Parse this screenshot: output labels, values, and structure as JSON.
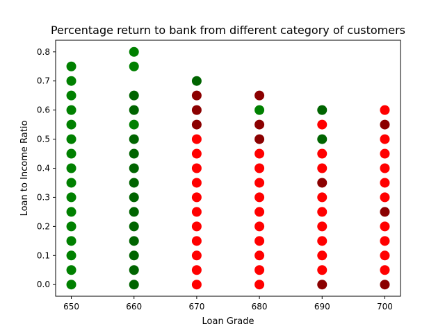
{
  "chart_data": {
    "type": "scatter",
    "title": "Percentage return to bank from different category of customers",
    "xlabel": "Loan Grade",
    "ylabel": "Loan to Income Ratio",
    "xlim": [
      647.5,
      702.5
    ],
    "ylim": [
      -0.04,
      0.84
    ],
    "xticks": [
      650,
      660,
      670,
      680,
      690,
      700
    ],
    "yticks": [
      0.0,
      0.1,
      0.2,
      0.3,
      0.4,
      0.5,
      0.6,
      0.7,
      0.8
    ],
    "grid": false,
    "colors": {
      "green": "#008000",
      "darkgreen": "#006400",
      "red": "#ff0000",
      "darkred": "#8b0000"
    },
    "columns": [
      {
        "x": 650,
        "points": [
          {
            "y": 0.0,
            "c": "green"
          },
          {
            "y": 0.05,
            "c": "green"
          },
          {
            "y": 0.1,
            "c": "green"
          },
          {
            "y": 0.15,
            "c": "green"
          },
          {
            "y": 0.2,
            "c": "green"
          },
          {
            "y": 0.25,
            "c": "green"
          },
          {
            "y": 0.3,
            "c": "green"
          },
          {
            "y": 0.35,
            "c": "green"
          },
          {
            "y": 0.4,
            "c": "green"
          },
          {
            "y": 0.45,
            "c": "green"
          },
          {
            "y": 0.5,
            "c": "green"
          },
          {
            "y": 0.55,
            "c": "green"
          },
          {
            "y": 0.6,
            "c": "green"
          },
          {
            "y": 0.65,
            "c": "green"
          },
          {
            "y": 0.7,
            "c": "green"
          },
          {
            "y": 0.75,
            "c": "green"
          }
        ]
      },
      {
        "x": 660,
        "points": [
          {
            "y": 0.0,
            "c": "darkgreen"
          },
          {
            "y": 0.05,
            "c": "darkgreen"
          },
          {
            "y": 0.1,
            "c": "darkgreen"
          },
          {
            "y": 0.15,
            "c": "darkgreen"
          },
          {
            "y": 0.2,
            "c": "darkgreen"
          },
          {
            "y": 0.25,
            "c": "darkgreen"
          },
          {
            "y": 0.3,
            "c": "darkgreen"
          },
          {
            "y": 0.35,
            "c": "darkgreen"
          },
          {
            "y": 0.4,
            "c": "darkgreen"
          },
          {
            "y": 0.45,
            "c": "darkgreen"
          },
          {
            "y": 0.5,
            "c": "darkgreen"
          },
          {
            "y": 0.55,
            "c": "green"
          },
          {
            "y": 0.6,
            "c": "darkgreen"
          },
          {
            "y": 0.65,
            "c": "darkgreen"
          },
          {
            "y": 0.75,
            "c": "green"
          },
          {
            "y": 0.8,
            "c": "green"
          }
        ]
      },
      {
        "x": 670,
        "points": [
          {
            "y": 0.0,
            "c": "red"
          },
          {
            "y": 0.05,
            "c": "red"
          },
          {
            "y": 0.1,
            "c": "red"
          },
          {
            "y": 0.15,
            "c": "red"
          },
          {
            "y": 0.2,
            "c": "red"
          },
          {
            "y": 0.25,
            "c": "red"
          },
          {
            "y": 0.3,
            "c": "red"
          },
          {
            "y": 0.35,
            "c": "red"
          },
          {
            "y": 0.4,
            "c": "red"
          },
          {
            "y": 0.45,
            "c": "red"
          },
          {
            "y": 0.5,
            "c": "red"
          },
          {
            "y": 0.55,
            "c": "darkred"
          },
          {
            "y": 0.6,
            "c": "darkred"
          },
          {
            "y": 0.65,
            "c": "darkred"
          },
          {
            "y": 0.7,
            "c": "darkgreen"
          }
        ]
      },
      {
        "x": 680,
        "points": [
          {
            "y": 0.0,
            "c": "red"
          },
          {
            "y": 0.05,
            "c": "red"
          },
          {
            "y": 0.1,
            "c": "red"
          },
          {
            "y": 0.15,
            "c": "red"
          },
          {
            "y": 0.2,
            "c": "red"
          },
          {
            "y": 0.25,
            "c": "red"
          },
          {
            "y": 0.3,
            "c": "red"
          },
          {
            "y": 0.35,
            "c": "red"
          },
          {
            "y": 0.4,
            "c": "red"
          },
          {
            "y": 0.45,
            "c": "red"
          },
          {
            "y": 0.5,
            "c": "darkred"
          },
          {
            "y": 0.55,
            "c": "darkred"
          },
          {
            "y": 0.6,
            "c": "green"
          },
          {
            "y": 0.65,
            "c": "darkred"
          }
        ]
      },
      {
        "x": 690,
        "points": [
          {
            "y": 0.0,
            "c": "darkred"
          },
          {
            "y": 0.05,
            "c": "red"
          },
          {
            "y": 0.1,
            "c": "red"
          },
          {
            "y": 0.15,
            "c": "red"
          },
          {
            "y": 0.2,
            "c": "red"
          },
          {
            "y": 0.25,
            "c": "red"
          },
          {
            "y": 0.3,
            "c": "red"
          },
          {
            "y": 0.35,
            "c": "darkred"
          },
          {
            "y": 0.4,
            "c": "red"
          },
          {
            "y": 0.45,
            "c": "red"
          },
          {
            "y": 0.5,
            "c": "darkgreen"
          },
          {
            "y": 0.55,
            "c": "red"
          },
          {
            "y": 0.6,
            "c": "darkgreen"
          }
        ]
      },
      {
        "x": 700,
        "points": [
          {
            "y": 0.0,
            "c": "darkred"
          },
          {
            "y": 0.05,
            "c": "red"
          },
          {
            "y": 0.1,
            "c": "red"
          },
          {
            "y": 0.15,
            "c": "red"
          },
          {
            "y": 0.2,
            "c": "red"
          },
          {
            "y": 0.25,
            "c": "darkred"
          },
          {
            "y": 0.3,
            "c": "red"
          },
          {
            "y": 0.35,
            "c": "red"
          },
          {
            "y": 0.4,
            "c": "red"
          },
          {
            "y": 0.45,
            "c": "red"
          },
          {
            "y": 0.5,
            "c": "red"
          },
          {
            "y": 0.55,
            "c": "darkred"
          },
          {
            "y": 0.6,
            "c": "red"
          }
        ]
      }
    ]
  }
}
